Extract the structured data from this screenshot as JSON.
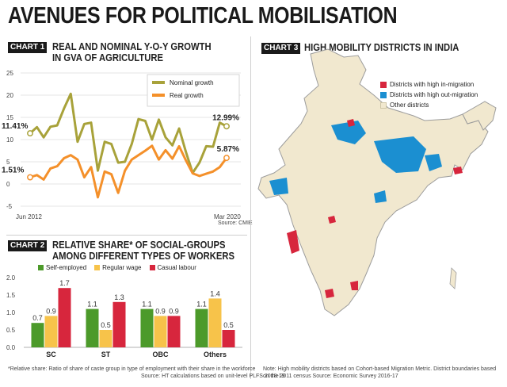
{
  "page_title": "AVENUES FOR POLITICAL MOBILISATION",
  "chart1": {
    "tag": "CHART 1",
    "heading_line1": "REAL AND NOMINAL Y-O-Y GROWTH",
    "heading_line2": "IN GVA OF AGRICULTURE",
    "source": "Source: CMIE",
    "x_start_label": "Jun 2012",
    "x_end_label": "Mar 2020",
    "start_labels": {
      "nominal": "11.41%",
      "real": "1.51%"
    },
    "end_labels": {
      "nominal": "12.99%",
      "real": "5.87%"
    }
  },
  "chart2": {
    "tag": "CHART 2",
    "heading_line1": "RELATIVE SHARE* OF SOCIAL-GROUPS",
    "heading_line2": "AMONG DIFFERENT TYPES OF WORKERS",
    "footnote": "*Relative share: Ratio of share of caste group in type of employment with their share in the workforce",
    "source": "Source: HT calculations based on unit-level PLFS 2018-19"
  },
  "chart3": {
    "tag": "CHART 3",
    "heading": "HIGH MOBILITY DISTRICTS IN INDIA",
    "legend": [
      {
        "label": "Districts with high in-migration",
        "color": "#d7263d"
      },
      {
        "label": "Districts with high out-migration",
        "color": "#1b8fd1"
      },
      {
        "label": "Other districts",
        "color": "#f1e8cf"
      }
    ],
    "note_line1": "Note: High mobility districts based on Cohort-based Migration Metric. District boundaries based",
    "note_line2": "on the 2011 census Source: Economic Survey 2016-17"
  },
  "chart_data": [
    {
      "type": "line",
      "ylim": [
        -5,
        25
      ],
      "yticks": [
        25,
        20,
        15,
        10,
        5,
        0,
        -5
      ],
      "grid": true,
      "legend_position": "top-right",
      "series": [
        {
          "name": "Nominal growth",
          "color": "#a8a23a",
          "values": [
            11.41,
            12.8,
            10.5,
            12.9,
            13.2,
            17.0,
            20.3,
            9.5,
            13.5,
            13.8,
            3.0,
            9.5,
            9.0,
            4.8,
            5.0,
            9.0,
            14.6,
            14.2,
            10.0,
            14.5,
            10.5,
            8.7,
            12.5,
            7.2,
            2.5,
            4.8,
            8.5,
            8.4,
            13.8,
            12.99
          ]
        },
        {
          "name": "Real growth",
          "color": "#f4902a",
          "values": [
            1.51,
            2.0,
            1.0,
            3.5,
            4.0,
            5.8,
            6.5,
            5.5,
            1.5,
            3.8,
            -3.0,
            2.8,
            2.2,
            -2.0,
            3.0,
            5.5,
            6.5,
            7.5,
            8.6,
            5.5,
            7.6,
            5.7,
            8.5,
            5.3,
            2.4,
            1.8,
            2.3,
            2.8,
            3.8,
            5.87
          ]
        }
      ]
    },
    {
      "type": "bar",
      "categories": [
        "SC",
        "ST",
        "OBC",
        "Others"
      ],
      "ylim": [
        0,
        2.0
      ],
      "yticks": [
        0.0,
        0.5,
        1.0,
        1.5,
        2.0
      ],
      "grid": false,
      "legend_position": "top",
      "series": [
        {
          "name": "Self-employed",
          "color": "#4c9a2a",
          "values": [
            0.7,
            1.1,
            1.1,
            1.1
          ],
          "labels": [
            "0.7",
            "1.1",
            "1.1",
            "1.1"
          ]
        },
        {
          "name": "Regular wage",
          "color": "#f7c34a",
          "values": [
            0.9,
            0.5,
            0.9,
            1.4
          ],
          "labels": [
            "0.9",
            "0.5",
            "0.9",
            "1.4"
          ]
        },
        {
          "name": "Casual labour",
          "color": "#d7263d",
          "values": [
            1.7,
            1.3,
            0.9,
            0.5
          ],
          "labels": [
            "1.7",
            "1.3",
            "0.9",
            "0.5"
          ]
        }
      ]
    }
  ]
}
